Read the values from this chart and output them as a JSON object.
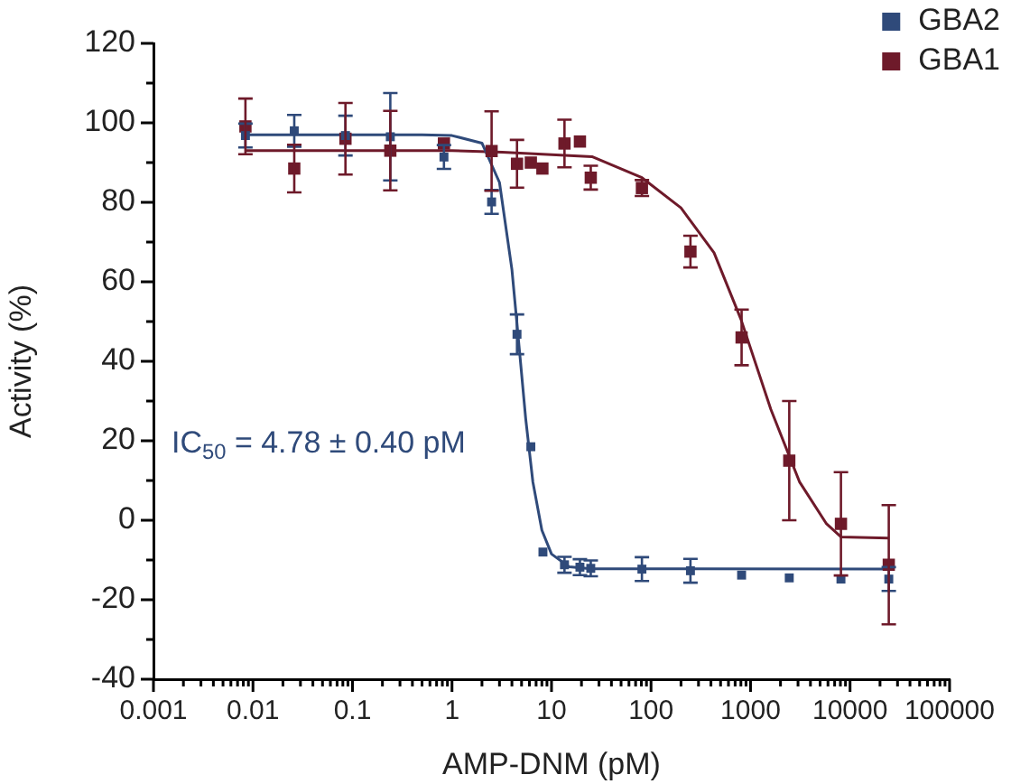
{
  "chart_data": {
    "type": "scatter",
    "xlabel": "AMP-DNM (pM)",
    "ylabel": "Activity (%)",
    "log": "x",
    "grid": false,
    "legend": "top right",
    "marker": "square",
    "xlim": [
      0.001,
      100000
    ],
    "ylim": [
      -40,
      120
    ],
    "xticks": [
      0.001,
      {
        "value": 0.002,
        "label": null
      },
      {
        "value": 0.003,
        "label": null
      },
      {
        "value": 0.004,
        "label": null
      },
      {
        "value": 0.005,
        "label": null
      },
      {
        "value": 0.006,
        "label": null
      },
      {
        "value": 0.007,
        "label": null
      },
      {
        "value": 0.008,
        "label": null
      },
      {
        "value": 0.009,
        "label": null
      },
      0.01,
      {
        "value": 0.02,
        "label": null
      },
      {
        "value": 0.03,
        "label": null
      },
      {
        "value": 0.04,
        "label": null
      },
      {
        "value": 0.05,
        "label": null
      },
      {
        "value": 0.06,
        "label": null
      },
      {
        "value": 0.07,
        "label": null
      },
      {
        "value": 0.08,
        "label": null
      },
      {
        "value": 0.09,
        "label": null
      },
      0.1,
      {
        "value": 0.2,
        "label": null
      },
      {
        "value": 0.3,
        "label": null
      },
      {
        "value": 0.4,
        "label": null
      },
      {
        "value": 0.5,
        "label": null
      },
      {
        "value": 0.6,
        "label": null
      },
      {
        "value": 0.7,
        "label": null
      },
      {
        "value": 0.8,
        "label": null
      },
      {
        "value": 0.9,
        "label": null
      },
      1,
      {
        "value": 2,
        "label": null
      },
      {
        "value": 3,
        "label": null
      },
      {
        "value": 4,
        "label": null
      },
      {
        "value": 5,
        "label": null
      },
      {
        "value": 6,
        "label": null
      },
      {
        "value": 7,
        "label": null
      },
      {
        "value": 8,
        "label": null
      },
      {
        "value": 9,
        "label": null
      },
      10,
      {
        "value": 20,
        "label": null
      },
      {
        "value": 30,
        "label": null
      },
      {
        "value": 40,
        "label": null
      },
      {
        "value": 50,
        "label": null
      },
      {
        "value": 60,
        "label": null
      },
      {
        "value": 70,
        "label": null
      },
      {
        "value": 80,
        "label": null
      },
      {
        "value": 90,
        "label": null
      },
      100,
      {
        "value": 200,
        "label": null
      },
      {
        "value": 300,
        "label": null
      },
      {
        "value": 400,
        "label": null
      },
      {
        "value": 500,
        "label": null
      },
      {
        "value": 600,
        "label": null
      },
      {
        "value": 700,
        "label": null
      },
      {
        "value": 800,
        "label": null
      },
      {
        "value": 900,
        "label": null
      },
      1000,
      {
        "value": 2000,
        "label": null
      },
      {
        "value": 3000,
        "label": null
      },
      {
        "value": 4000,
        "label": null
      },
      {
        "value": 5000,
        "label": null
      },
      {
        "value": 6000,
        "label": null
      },
      {
        "value": 7000,
        "label": null
      },
      {
        "value": 8000,
        "label": null
      },
      {
        "value": 9000,
        "label": null
      },
      10000,
      {
        "value": 20000,
        "label": null
      },
      {
        "value": 30000,
        "label": null
      },
      {
        "value": 40000,
        "label": null
      },
      {
        "value": 50000,
        "label": null
      },
      {
        "value": 60000,
        "label": null
      },
      {
        "value": 70000,
        "label": null
      },
      {
        "value": 80000,
        "label": null
      },
      {
        "value": 90000,
        "label": null
      },
      100000
    ],
    "yticks": [
      -40,
      {
        "value": -30,
        "label": null
      },
      -20,
      {
        "value": -10,
        "label": null
      },
      0,
      {
        "value": 10,
        "label": null
      },
      20,
      {
        "value": 30,
        "label": null
      },
      40,
      {
        "value": 50,
        "label": null
      },
      60,
      {
        "value": 70,
        "label": null
      },
      80,
      {
        "value": 90,
        "label": null
      },
      100,
      {
        "value": 110,
        "label": null
      },
      120
    ],
    "annotations": [
      "IC$_{50}$ = 4.78 ± 0.40 pM"
    ],
    "series": [
      {
        "name": "GBA2",
        "color": "#2f4a7a",
        "x": [
          0.0084,
          0.026,
          0.085,
          0.24,
          0.83,
          2.5,
          4.5,
          6.2,
          8.2,
          13.5,
          19.3,
          24.8,
          81,
          249,
          813,
          2450,
          8100,
          24500
        ],
        "values": [
          96.8,
          98,
          96.8,
          96.5,
          91.4,
          80.1,
          46.8,
          18.5,
          -8,
          -11.2,
          -11.8,
          -12.1,
          -12.3,
          -12.7,
          -13.8,
          -14.5,
          -14.8,
          -14.8
        ],
        "errors": [
          3,
          4,
          5,
          11,
          3,
          3,
          5,
          null,
          null,
          2,
          2,
          2,
          3,
          3,
          null,
          null,
          null,
          3
        ]
      },
      {
        "name": "GBA1",
        "color": "#6e1a2a",
        "x": [
          0.0084,
          0.026,
          0.085,
          0.24,
          0.83,
          2.5,
          4.5,
          6.2,
          8.1,
          13.5,
          19.3,
          24.8,
          81,
          249,
          813,
          2450,
          8100,
          24500
        ],
        "values": [
          99.1,
          88.5,
          96,
          93,
          94.8,
          92.9,
          89.7,
          90,
          88.5,
          94.8,
          95.3,
          86.2,
          83.6,
          67.6,
          46,
          15,
          -0.9,
          -11.2
        ],
        "errors": [
          7,
          6,
          9,
          10,
          null,
          10,
          6,
          null,
          null,
          6,
          null,
          3,
          2,
          4,
          7,
          15,
          13,
          15
        ]
      },
      {
        "type": "line",
        "color": "#2f4a7a",
        "marker": "none",
        "x": [
          0.0084,
          0.5,
          1,
          2,
          3,
          4,
          4.78,
          5.5,
          6.5,
          8,
          10,
          15,
          25,
          24500
        ],
        "values": [
          97,
          97,
          96.8,
          94.9,
          85,
          63.1,
          42.3,
          25.6,
          9.6,
          -2.5,
          -8.5,
          -11.7,
          -12.2,
          -12.3
        ]
      },
      {
        "type": "line",
        "color": "#6e1a2a",
        "marker": "none",
        "x": [
          0.0084,
          1,
          3.2,
          25.5,
          81,
          200,
          430,
          800,
          1600,
          3100,
          5800,
          8100,
          24500
        ],
        "values": [
          93,
          93,
          92.6,
          91.5,
          86.2,
          78.6,
          67.3,
          50.6,
          27.9,
          9.7,
          -0.9,
          -4.2,
          -4.5
        ]
      }
    ]
  }
}
